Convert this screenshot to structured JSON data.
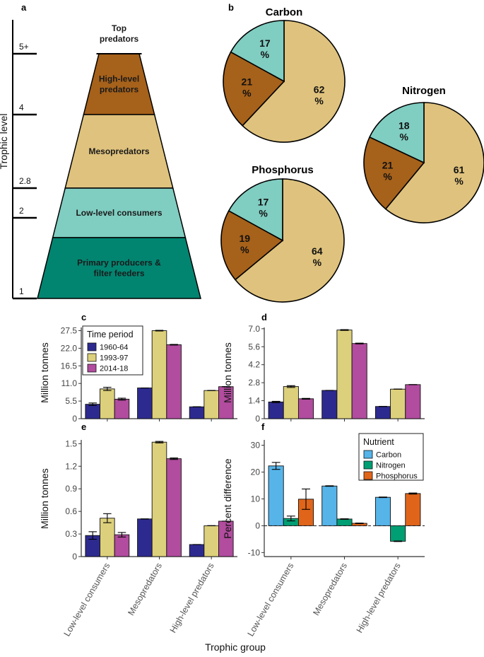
{
  "panel_labels": [
    "a",
    "b",
    "c",
    "d",
    "e",
    "f"
  ],
  "colors": {
    "top": "#ffffff",
    "high": "#a6611a",
    "meso": "#dfc27d",
    "low": "#80cdc1",
    "primary": "#018571",
    "p1960": "#2d2a8f",
    "p1993": "#ddd07c",
    "p2014": "#b14c9e",
    "carbon": "#56b4e9",
    "nitrogen": "#009e73",
    "phosphorus": "#e0651a"
  },
  "pyramid": {
    "axis_title": "Trophic level",
    "ticks": [
      "1",
      "2",
      "2.8",
      "4",
      "5+"
    ],
    "levels": [
      {
        "lines": [
          "Top",
          "predators"
        ],
        "color_key": "top"
      },
      {
        "lines": [
          "High-level",
          "predators"
        ],
        "color_key": "high"
      },
      {
        "lines": [
          "Mesopredators"
        ],
        "color_key": "meso"
      },
      {
        "lines": [
          "Low-level consumers"
        ],
        "color_key": "low"
      },
      {
        "lines": [
          "Primary producers &",
          "filter feeders"
        ],
        "color_key": "primary"
      }
    ]
  },
  "chart_data": [
    {
      "panel": "b",
      "type": "pie",
      "charts": [
        {
          "title": "Carbon",
          "slices": [
            {
              "label": "62\n%",
              "value": 62,
              "color_key": "meso"
            },
            {
              "label": "21\n%",
              "value": 21,
              "color_key": "high"
            },
            {
              "label": "17\n%",
              "value": 17,
              "color_key": "low"
            }
          ]
        },
        {
          "title": "Nitrogen",
          "slices": [
            {
              "label": "61\n%",
              "value": 61,
              "color_key": "meso"
            },
            {
              "label": "21\n%",
              "value": 21,
              "color_key": "high"
            },
            {
              "label": "18\n%",
              "value": 18,
              "color_key": "low"
            }
          ]
        },
        {
          "title": "Phosphorus",
          "slices": [
            {
              "label": "64\n%",
              "value": 64,
              "color_key": "meso"
            },
            {
              "label": "19\n%",
              "value": 19,
              "color_key": "high"
            },
            {
              "label": "17\n%",
              "value": 17,
              "color_key": "low"
            }
          ]
        }
      ]
    },
    {
      "panel": "c",
      "type": "bar",
      "ylabel": "Million tonnes",
      "ylim": [
        0,
        28.5
      ],
      "yticks": [
        "0",
        "5.5",
        "11.0",
        "16.5",
        "22.0",
        "27.5"
      ],
      "ytick_values": [
        0,
        5.5,
        11,
        16.5,
        22,
        27.5
      ],
      "categories": [
        "Low-level consumers",
        "Mesopredators",
        "High-level predators"
      ],
      "legend": {
        "title": "Time period",
        "position": "top-left"
      },
      "series": [
        {
          "name": "1960-64",
          "color_key": "p1960",
          "values": [
            4.5,
            9.6,
            3.7
          ],
          "errors": [
            0.4,
            0,
            0
          ]
        },
        {
          "name": "1993-97",
          "color_key": "p1993",
          "values": [
            9.3,
            27.5,
            8.8
          ],
          "errors": [
            0.5,
            0.1,
            0
          ]
        },
        {
          "name": "2014-18",
          "color_key": "p2014",
          "values": [
            6.1,
            23.1,
            10.0
          ],
          "errors": [
            0.3,
            0.1,
            0
          ]
        }
      ]
    },
    {
      "panel": "d",
      "type": "bar",
      "ylabel": "Million tonnes",
      "ylim": [
        0,
        7.1
      ],
      "yticks": [
        "0",
        "1.4",
        "2.8",
        "4.2",
        "5.6",
        "7.0"
      ],
      "ytick_values": [
        0,
        1.4,
        2.8,
        4.2,
        5.6,
        7.0
      ],
      "categories": [
        "Low-level consumers",
        "Mesopredators",
        "High-level predators"
      ],
      "series": [
        {
          "name": "1960-64",
          "color_key": "p1960",
          "values": [
            1.3,
            2.2,
            0.95
          ],
          "errors": [
            0.05,
            0,
            0
          ]
        },
        {
          "name": "1993-97",
          "color_key": "p1993",
          "values": [
            2.5,
            6.9,
            2.3
          ],
          "errors": [
            0.07,
            0.03,
            0
          ]
        },
        {
          "name": "2014-18",
          "color_key": "p2014",
          "values": [
            1.55,
            5.85,
            2.65
          ],
          "errors": [
            0.03,
            0.03,
            0
          ]
        }
      ]
    },
    {
      "panel": "e",
      "type": "bar",
      "ylabel": "Million tonnes",
      "ylim": [
        0,
        1.55
      ],
      "yticks": [
        "0",
        "0.3",
        "0.6",
        "0.9",
        "1.2",
        "1.5"
      ],
      "ytick_values": [
        0,
        0.3,
        0.6,
        0.9,
        1.2,
        1.5
      ],
      "categories": [
        "Low-level consumers",
        "Mesopredators",
        "High-level predators"
      ],
      "series": [
        {
          "name": "1960-64",
          "color_key": "p1960",
          "values": [
            0.28,
            0.5,
            0.16
          ],
          "errors": [
            0.05,
            0,
            0
          ]
        },
        {
          "name": "1993-97",
          "color_key": "p1993",
          "values": [
            0.51,
            1.52,
            0.41
          ],
          "errors": [
            0.06,
            0.01,
            0
          ]
        },
        {
          "name": "2014-18",
          "color_key": "p2014",
          "values": [
            0.29,
            1.3,
            0.47
          ],
          "errors": [
            0.03,
            0.01,
            0
          ]
        }
      ]
    },
    {
      "panel": "f",
      "type": "bar",
      "ylabel": "Percent difference",
      "ylim": [
        -11.5,
        32
      ],
      "yticks": [
        "-10",
        "0",
        "10",
        "20",
        "30"
      ],
      "ytick_values": [
        -10,
        0,
        10,
        20,
        30
      ],
      "zero_line": true,
      "categories": [
        "Low-level consumers",
        "Mesopredators",
        "High-level predators"
      ],
      "legend": {
        "title": "Nutrient",
        "position": "top-right"
      },
      "series": [
        {
          "name": "Carbon",
          "color_key": "carbon",
          "values": [
            22.3,
            14.8,
            10.6
          ],
          "errors": [
            1.3,
            0.1,
            0.1
          ]
        },
        {
          "name": "Nitrogen",
          "color_key": "nitrogen",
          "values": [
            2.7,
            2.5,
            -5.8
          ],
          "errors": [
            0.9,
            0.1,
            0.1
          ]
        },
        {
          "name": "Phosphorus",
          "color_key": "phosphorus",
          "values": [
            9.9,
            0.9,
            12.0
          ],
          "errors": [
            3.8,
            0.1,
            0.2
          ]
        }
      ]
    }
  ],
  "shared_xlabel": "Trophic group"
}
